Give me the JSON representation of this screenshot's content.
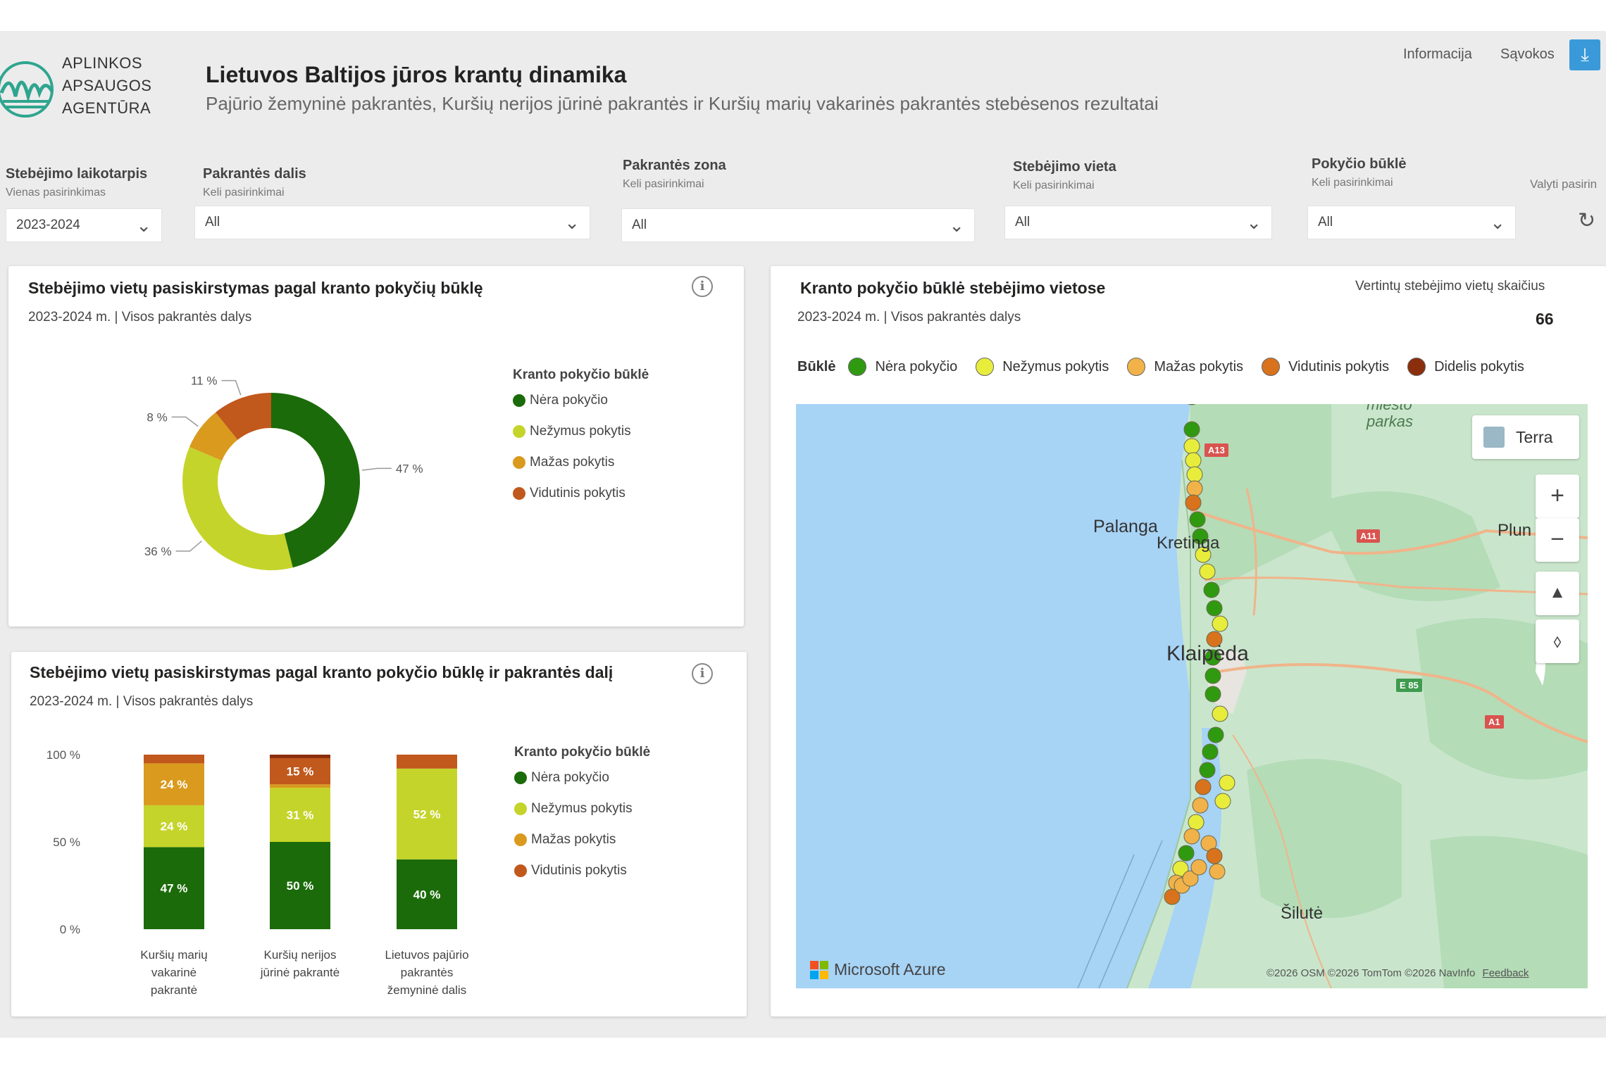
{
  "header": {
    "logo_lines": [
      "APLINKOS",
      "APSAUGOS",
      "AGENTŪRA"
    ],
    "title": "Lietuvos Baltijos jūros krantų dinamika",
    "subtitle": "Pajūrio žemyninė pakrantės, Kuršių nerijos jūrinė pakrantės ir Kuršių marių vakarinės pakrantės stebėsenos rezultatai",
    "links": {
      "info": "Informacija",
      "terms": "Sąvokos"
    },
    "download_icon": "download-icon"
  },
  "filters": {
    "period": {
      "title": "Stebėjimo laikotarpis",
      "sub": "Vienas pasirinkimas",
      "value": "2023-2024"
    },
    "part": {
      "title": "Pakrantės dalis",
      "sub": "Keli pasirinkimai",
      "value": "All"
    },
    "zone": {
      "title": "Pakrantės zona",
      "sub": "Keli pasirinkimai",
      "value": "All"
    },
    "site": {
      "title": "Stebėjimo vieta",
      "sub": "Keli pasirinkimai",
      "value": "All"
    },
    "status": {
      "title": "Pokyčio būklė",
      "sub": "Keli pasirinkimai",
      "value": "All"
    },
    "clear": {
      "title": "Valyti pasirin"
    }
  },
  "colors": {
    "none": "#1b6b0a",
    "slight": "#c5d42a",
    "small": "#d99a1e",
    "medium": "#c1581c",
    "large": "#8b2e0c",
    "none_map": "#2f9a10",
    "slight_map": "#e8ed3c",
    "small_map": "#f2b24a",
    "medium_map": "#d9721c"
  },
  "donut_card": {
    "title": "Stebėjimo vietų pasiskirstymas pagal kranto pokyčių būklę",
    "sub": "2023-2024 m.  |  Visos pakrantės dalys",
    "legend_title": "Kranto pokyčio būklė",
    "legend": [
      "Nėra pokyčio",
      "Nežymus pokytis",
      "Mažas pokytis",
      "Vidutinis pokytis"
    ],
    "labels": {
      "a": "47 %",
      "b": "36 %",
      "c": "8 %",
      "d": "11 %"
    }
  },
  "bar_card": {
    "title": "Stebėjimo vietų pasiskirstymas pagal kranto pokyčio būklę ir pakrantės dalį",
    "sub": "2023-2024 m.  |  Visos pakrantės dalys",
    "legend_title": "Kranto pokyčio būklė",
    "legend": [
      "Nėra pokyčio",
      "Nežymus pokytis",
      "Mažas pokytis",
      "Vidutinis pokytis"
    ]
  },
  "chart_data": [
    {
      "type": "pie",
      "title": "Stebėjimo vietų pasiskirstymas pagal kranto pokyčių būklę",
      "categories": [
        "Nėra pokyčio",
        "Nežymus pokytis",
        "Mažas pokytis",
        "Vidutinis pokytis"
      ],
      "values": [
        47,
        36,
        8,
        11
      ],
      "legend": "right"
    },
    {
      "type": "bar",
      "title": "Stebėjimo vietų pasiskirstymas pagal kranto pokyčio būklę ir pakrantės dalį",
      "categories": [
        [
          "Kuršių marių",
          "vakarinė",
          "pakrantė"
        ],
        [
          "Kuršių nerijos",
          "jūrinė pakrantė"
        ],
        [
          "Lietuvos pajūrio",
          "pakrantės",
          "žemyninė dalis"
        ]
      ],
      "y_ticks": [
        "100 %",
        "50 %",
        "0 %"
      ],
      "ylim": [
        0,
        100
      ],
      "stacked": true,
      "legend": "right",
      "series": [
        {
          "name": "Nėra pokyčio",
          "values": [
            47,
            50,
            40
          ],
          "labels": [
            "47 %",
            "50 %",
            "40 %"
          ]
        },
        {
          "name": "Nežymus pokytis",
          "values": [
            24,
            31,
            52
          ],
          "labels": [
            "24 %",
            "31 %",
            "52 %"
          ]
        },
        {
          "name": "Mažas pokytis",
          "values": [
            24,
            2,
            0
          ],
          "labels": [
            "24 %",
            "",
            ""
          ]
        },
        {
          "name": "Vidutinis pokytis",
          "values": [
            5,
            15,
            8
          ],
          "labels": [
            "",
            "15 %",
            ""
          ]
        },
        {
          "name": "Didelis pokytis",
          "values": [
            0,
            2,
            0
          ],
          "labels": [
            "",
            "",
            ""
          ]
        }
      ]
    }
  ],
  "map_card": {
    "title": "Kranto pokyčio būklė stebėjimo vietose",
    "sub": "2023-2024 m.  |  Visos pakrantės dalys",
    "count_label": "Vertintų stebėjimo vietų skaičius",
    "count_value": "66",
    "legend_title": "Būklė",
    "legend": [
      "Nėra pokyčio",
      "Nežymus pokytis",
      "Mažas pokytis",
      "Vidutinis pokytis",
      "Didelis pokytis"
    ],
    "style_button": "Terra",
    "cities": {
      "palanga": "Palanga",
      "kretinga": "Kretinga",
      "klaipeda": "Klaipėda",
      "silute": "Šilutė",
      "plunge": "Plun",
      "park": "parkas",
      "park_top": "miesto"
    },
    "roads": {
      "a13": "A13",
      "a11": "A11",
      "e85": "E 85",
      "a1": "A1"
    },
    "brand": "Microsoft Azure",
    "attribution": "©2026 OSM  ©2026 TomTom  ©2026 NavInfo",
    "feedback": "Feedback"
  }
}
